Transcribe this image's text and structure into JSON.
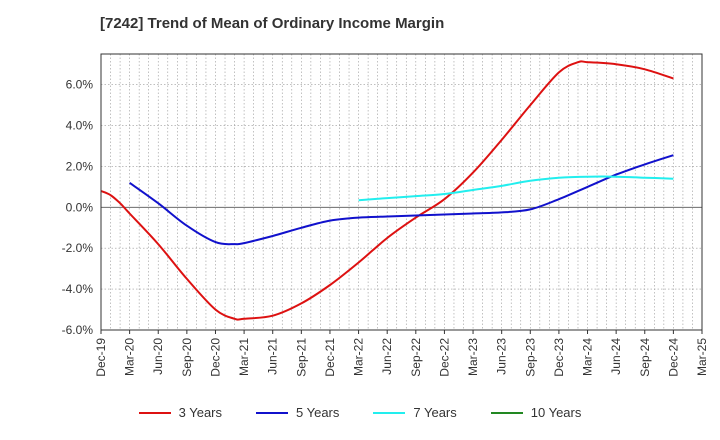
{
  "chart_data": {
    "type": "line",
    "title": "[7242]  Trend of Mean of Ordinary Income Margin",
    "xlabel": "",
    "ylabel": "",
    "x_ticks": [
      "Dec-19",
      "Mar-20",
      "Jun-20",
      "Sep-20",
      "Dec-20",
      "Mar-21",
      "Jun-21",
      "Sep-21",
      "Dec-21",
      "Mar-22",
      "Jun-22",
      "Sep-22",
      "Dec-22",
      "Mar-23",
      "Jun-23",
      "Sep-23",
      "Dec-23",
      "Mar-24",
      "Jun-24",
      "Sep-24",
      "Dec-24",
      "Mar-25"
    ],
    "ylim": [
      -6.0,
      7.5
    ],
    "y_ticks": [
      -6.0,
      -4.0,
      -2.0,
      0.0,
      2.0,
      4.0,
      6.0
    ],
    "y_tick_labels": [
      "-6.0%",
      "-4.0%",
      "-2.0%",
      "0.0%",
      "2.0%",
      "4.0%",
      "6.0%"
    ],
    "grid": true,
    "legend_position": "bottom",
    "series": [
      {
        "name": "3 Years",
        "color": "#dd1111",
        "points": [
          [
            "Dec-19",
            0.8
          ],
          [
            "Jan-20",
            0.6
          ],
          [
            "Feb-20",
            0.2
          ],
          [
            "Mar-20",
            -0.3
          ],
          [
            "Jun-20",
            -1.8
          ],
          [
            "Sep-20",
            -3.5
          ],
          [
            "Dec-20",
            -5.0
          ],
          [
            "Feb-21",
            -5.45
          ],
          [
            "Mar-21",
            -5.45
          ],
          [
            "Jun-21",
            -5.3
          ],
          [
            "Sep-21",
            -4.7
          ],
          [
            "Dec-21",
            -3.8
          ],
          [
            "Mar-22",
            -2.7
          ],
          [
            "Jun-22",
            -1.5
          ],
          [
            "Sep-22",
            -0.5
          ],
          [
            "Dec-22",
            0.4
          ],
          [
            "Mar-23",
            1.7
          ],
          [
            "Jun-23",
            3.3
          ],
          [
            "Sep-23",
            5.0
          ],
          [
            "Dec-23",
            6.6
          ],
          [
            "Feb-24",
            7.1
          ],
          [
            "Mar-24",
            7.1
          ],
          [
            "Jun-24",
            7.0
          ],
          [
            "Sep-24",
            6.75
          ],
          [
            "Dec-24",
            6.3
          ]
        ]
      },
      {
        "name": "5 Years",
        "color": "#1111cc",
        "points": [
          [
            "Mar-20",
            1.2
          ],
          [
            "Jun-20",
            0.2
          ],
          [
            "Sep-20",
            -0.9
          ],
          [
            "Dec-20",
            -1.7
          ],
          [
            "Feb-21",
            -1.8
          ],
          [
            "Mar-21",
            -1.75
          ],
          [
            "Jun-21",
            -1.4
          ],
          [
            "Sep-21",
            -1.0
          ],
          [
            "Dec-21",
            -0.65
          ],
          [
            "Mar-22",
            -0.5
          ],
          [
            "Jun-22",
            -0.45
          ],
          [
            "Sep-22",
            -0.4
          ],
          [
            "Dec-22",
            -0.35
          ],
          [
            "Mar-23",
            -0.3
          ],
          [
            "Jun-23",
            -0.25
          ],
          [
            "Sep-23",
            -0.1
          ],
          [
            "Dec-23",
            0.4
          ],
          [
            "Mar-24",
            1.0
          ],
          [
            "Jun-24",
            1.6
          ],
          [
            "Sep-24",
            2.1
          ],
          [
            "Dec-24",
            2.55
          ]
        ]
      },
      {
        "name": "7 Years",
        "color": "#22eeee",
        "points": [
          [
            "Mar-22",
            0.35
          ],
          [
            "Jun-22",
            0.45
          ],
          [
            "Sep-22",
            0.55
          ],
          [
            "Dec-22",
            0.65
          ],
          [
            "Mar-23",
            0.85
          ],
          [
            "Jun-23",
            1.05
          ],
          [
            "Sep-23",
            1.3
          ],
          [
            "Dec-23",
            1.45
          ],
          [
            "Mar-24",
            1.5
          ],
          [
            "Jun-24",
            1.5
          ],
          [
            "Sep-24",
            1.45
          ],
          [
            "Dec-24",
            1.4
          ]
        ]
      },
      {
        "name": "10 Years",
        "color": "#228822",
        "points": []
      }
    ]
  }
}
